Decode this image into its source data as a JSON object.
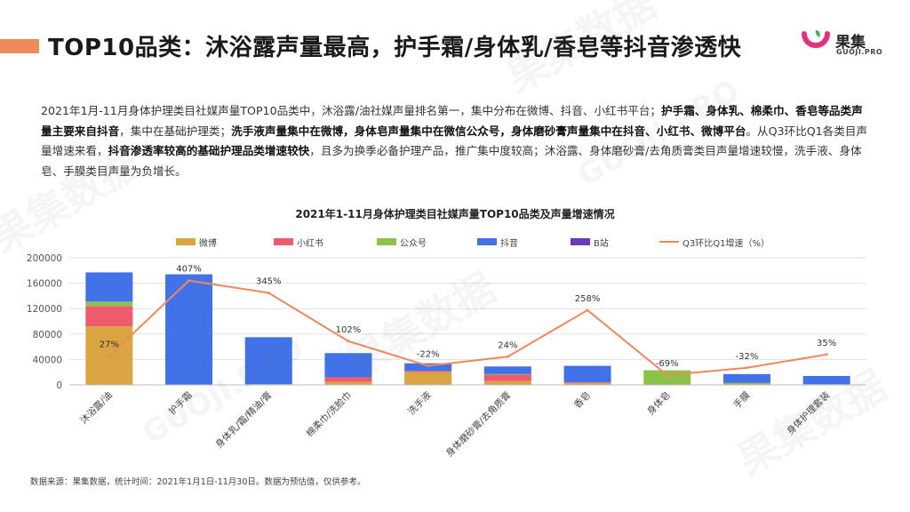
{
  "header": {
    "title": "TOP10品类：沐浴露声量最高，护手霜/身体乳/香皂等抖音渗透快",
    "logo_text": "果集",
    "logo_sub": "GUOJI.PRO",
    "logo_icon": "guoji-logo-mark"
  },
  "summary": {
    "p1": "2021年1月-11月身体护理类目社媒声量TOP10品类中，沐浴露/油社媒声量排名第一，集中分布在微博、抖音、小红书平台；",
    "b1": "护手霜、身体乳、棉柔巾、香皂等品类声量主要来自抖音",
    "p2": "，集中在基础护理类；",
    "b2": "洗手液声量集中在微博，身体皂声量集中在微信公众号，身体磨砂膏声量集中在抖音、小红书、微博平台",
    "p3": "。从Q3环比Q1各类目声量增速来看，",
    "b3": "抖音渗透率较高的基础护理品类增速较快",
    "p4": "，且多为换季必备护理产品，推广集中度较高；沐浴露、身体磨砂膏/去角质膏类目声量增速较慢，洗手液、身体皂、手膜类目声量为负增长。"
  },
  "watermark": [
    "果集数据",
    "GUOJI.PRO"
  ],
  "source": "数据来源：果集数据，统计时间：2021年1月1日-11月30日。数据为预估值，仅供参考。",
  "colors": {
    "accent": "#f08a5d",
    "weibo": "#d9a441",
    "xiaohongshu": "#ef5b6e",
    "gongzhonghao": "#8bc34a",
    "douyin": "#4272e8",
    "bilibili": "#6a3db8",
    "growth_line": "#f0885a"
  },
  "chart_data": {
    "type": "bar",
    "stacked": true,
    "title": "2021年1-11月身体护理类目社媒声量TOP10品类及声量增速情况",
    "categories": [
      "沐浴露/油",
      "护手霜",
      "身体乳/霜/精油/膏",
      "棉柔巾/洗脸巾",
      "洗手液",
      "身体磨砂膏/去角质膏",
      "香皂",
      "身体皂",
      "手膜",
      "身体护理套装"
    ],
    "series": [
      {
        "name": "微博",
        "values": [
          92000,
          0,
          1000,
          5000,
          20000,
          6000,
          3000,
          0,
          2000,
          0
        ]
      },
      {
        "name": "小红书",
        "values": [
          32000,
          0,
          0,
          7000,
          2000,
          10000,
          1000,
          0,
          0,
          0
        ]
      },
      {
        "name": "公众号",
        "values": [
          7000,
          0,
          0,
          0,
          0,
          1000,
          0,
          23000,
          1000,
          1000
        ]
      },
      {
        "name": "抖音",
        "values": [
          46000,
          174000,
          74000,
          38000,
          12000,
          12000,
          26000,
          0,
          14000,
          13000
        ]
      },
      {
        "name": "B站",
        "values": [
          0,
          0,
          0,
          0,
          0,
          0,
          0,
          0,
          0,
          0
        ]
      }
    ],
    "line_series": {
      "name": "Q3环比Q1增速（%）",
      "values": [
        27,
        407,
        345,
        102,
        -22,
        24,
        258,
        -69,
        -32,
        35
      ],
      "labels": [
        "27%",
        "407%",
        "345%",
        "102%",
        "-22%",
        "24%",
        "258%",
        "-69%",
        "-32%",
        "35%"
      ]
    },
    "ylim": [
      0,
      200000
    ],
    "yticks": [
      "0",
      "40000",
      "80000",
      "120000",
      "160000",
      "200000"
    ],
    "legend_position": "top",
    "grid": true
  }
}
